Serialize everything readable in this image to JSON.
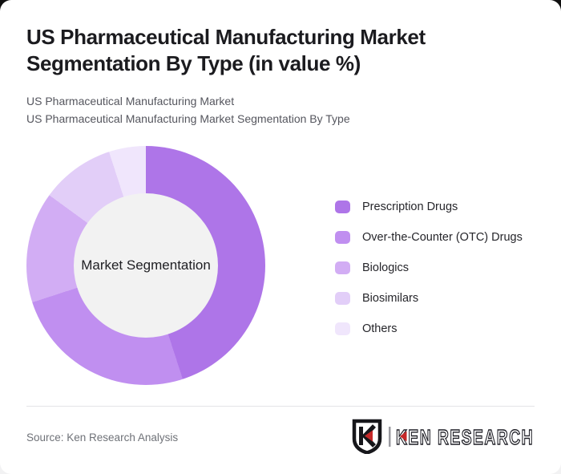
{
  "page": {
    "background_color": "#101010",
    "card_color": "#ffffff"
  },
  "header": {
    "title": "US Pharmaceutical Manufacturing Market Segmentation By Type (in value %)",
    "subtitle_line1": "US Pharmaceutical Manufacturing Market",
    "subtitle_line2": "US Pharmaceutical Manufacturing Market Segmentation By Type"
  },
  "chart_data": {
    "type": "pie",
    "donut": true,
    "title": "US Pharmaceutical Manufacturing Market Segmentation By Type (in value %)",
    "center_label": "Market Segmentation",
    "categories": [
      "Prescription Drugs",
      "Over-the-Counter (OTC) Drugs",
      "Biologics",
      "Biosimilars",
      "Others"
    ],
    "values": [
      45,
      25,
      15,
      10,
      5
    ],
    "unit": "%",
    "colors": [
      "#ae75e8",
      "#c08ff0",
      "#d2adf4",
      "#e2cef8",
      "#f0e6fc"
    ],
    "hole_color": "#f2f2f2",
    "legend_position": "right",
    "start_angle_deg": 0,
    "direction": "clockwise"
  },
  "legend": {
    "items": [
      {
        "label": "Prescription Drugs",
        "color": "#ae75e8"
      },
      {
        "label": "Over-the-Counter (OTC) Drugs",
        "color": "#c08ff0"
      },
      {
        "label": "Biologics",
        "color": "#d2adf4"
      },
      {
        "label": "Biosimilars",
        "color": "#e2cef8"
      },
      {
        "label": "Others",
        "color": "#f0e6fc"
      }
    ]
  },
  "footer": {
    "source": "Source: Ken Research Analysis",
    "logo_text": "KEN RESEARCH",
    "logo_accent_color": "#c62828",
    "logo_ink_color": "#1d1d24"
  }
}
